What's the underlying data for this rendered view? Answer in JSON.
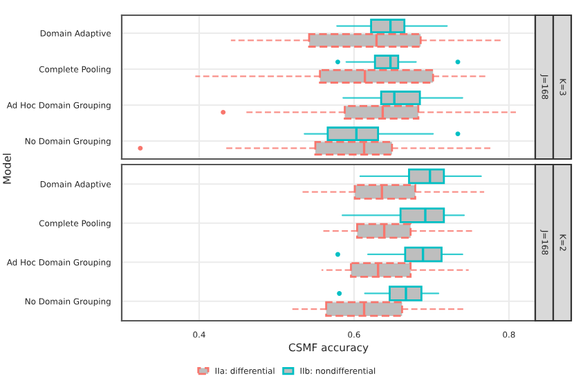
{
  "chart_data": [
    {
      "type": "box",
      "orientation": "horizontal",
      "ylabel": "Model",
      "categories": [
        "Domain Adaptive",
        "Complete Pooling",
        "Ad Hoc Domain Grouping",
        "No Domain Grouping"
      ],
      "xlim": [
        0.3,
        0.834
      ],
      "xticks": [
        0.4,
        0.6,
        0.8
      ],
      "grid": true,
      "tick_labels": "y",
      "annotations": [
        "J=168",
        "K=3"
      ],
      "series": [
        {
          "color": "#00bfc4",
          "line_style": "solid",
          "boxes": [
            {
              "low": 0.578,
              "q1": 0.622,
              "median": 0.647,
              "q3": 0.665,
              "high": 0.72
            },
            {
              "low": 0.59,
              "q1": 0.627,
              "median": 0.647,
              "q3": 0.657,
              "high": 0.68,
              "outliers": [
                0.579,
                0.734
              ]
            },
            {
              "low": 0.586,
              "q1": 0.635,
              "median": 0.652,
              "q3": 0.685,
              "high": 0.74
            },
            {
              "low": 0.536,
              "q1": 0.566,
              "median": 0.603,
              "q3": 0.631,
              "high": 0.702,
              "outliers": [
                0.734
              ]
            }
          ]
        },
        {
          "color": "#f8766d",
          "line_style": "dashed",
          "boxes": [
            {
              "low": 0.441,
              "q1": 0.542,
              "median": 0.629,
              "q3": 0.686,
              "high": 0.793
            },
            {
              "low": 0.395,
              "q1": 0.556,
              "median": 0.614,
              "q3": 0.702,
              "high": 0.772
            },
            {
              "low": 0.458,
              "q1": 0.588,
              "median": 0.637,
              "q3": 0.683,
              "high": 0.809,
              "outliers": [
                0.431
              ]
            },
            {
              "low": 0.435,
              "q1": 0.55,
              "median": 0.613,
              "q3": 0.649,
              "high": 0.776,
              "outliers": [
                0.324
              ]
            }
          ]
        }
      ]
    },
    {
      "type": "box",
      "orientation": "horizontal",
      "xlabel": "CSMF accuracy",
      "categories": [
        "Domain Adaptive",
        "Complete Pooling",
        "Ad Hoc Domain Grouping",
        "No Domain Grouping"
      ],
      "xlim": [
        0.3,
        0.834
      ],
      "xticks": [
        0.4,
        0.6,
        0.8
      ],
      "grid": true,
      "legend": "bottom",
      "annotations": [
        "J=168",
        "K=2"
      ],
      "series": [
        {
          "name": "IIb: nondifferential",
          "color": "#00bfc4",
          "line_style": "solid",
          "boxes": [
            {
              "low": 0.608,
              "q1": 0.671,
              "median": 0.698,
              "q3": 0.716,
              "high": 0.764
            },
            {
              "low": 0.585,
              "q1": 0.66,
              "median": 0.692,
              "q3": 0.716,
              "high": 0.742
            },
            {
              "low": 0.618,
              "q1": 0.666,
              "median": 0.689,
              "q3": 0.713,
              "high": 0.74,
              "outliers": [
                0.579
              ]
            },
            {
              "low": 0.614,
              "q1": 0.646,
              "median": 0.667,
              "q3": 0.687,
              "high": 0.709,
              "outliers": [
                0.581
              ]
            }
          ]
        },
        {
          "name": "IIa: differential",
          "color": "#f8766d",
          "line_style": "dashed",
          "boxes": [
            {
              "low": 0.53,
              "q1": 0.601,
              "median": 0.636,
              "q3": 0.679,
              "high": 0.768
            },
            {
              "low": 0.557,
              "q1": 0.604,
              "median": 0.639,
              "q3": 0.673,
              "high": 0.755
            },
            {
              "low": 0.558,
              "q1": 0.596,
              "median": 0.631,
              "q3": 0.673,
              "high": 0.748
            },
            {
              "low": 0.517,
              "q1": 0.564,
              "median": 0.613,
              "q3": 0.662,
              "high": 0.741
            }
          ]
        }
      ]
    }
  ]
}
